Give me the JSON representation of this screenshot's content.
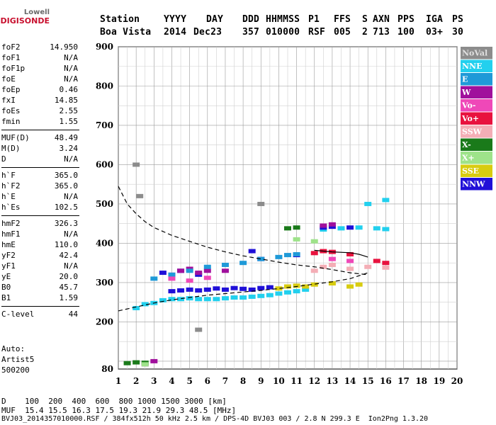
{
  "logo": {
    "line1": "Lowell",
    "line2": "DIGISONDE"
  },
  "header": {
    "cols": [
      "Station",
      "YYYY",
      "DAY",
      "DDD",
      "HHMMSS",
      "P1",
      "FFS",
      "S",
      "AXN",
      "PPS",
      "IGA",
      "PS"
    ],
    "vals": [
      "Boa Vista",
      "2014",
      "Dec23",
      "357",
      "010000",
      "RSF",
      "005",
      "2",
      "713",
      "100",
      "03+",
      "30"
    ]
  },
  "params": [
    {
      "k": "foF2",
      "v": "14.950"
    },
    {
      "k": "foF1",
      "v": "N/A"
    },
    {
      "k": "foF1p",
      "v": "N/A"
    },
    {
      "k": "foE",
      "v": "N/A"
    },
    {
      "k": "foEp",
      "v": "0.46"
    },
    {
      "k": "fxI",
      "v": "14.85"
    },
    {
      "k": "foEs",
      "v": "2.55"
    },
    {
      "k": "fmin",
      "v": "1.55"
    },
    {
      "k": "MUF(D)",
      "v": "48.49"
    },
    {
      "k": "M(D)",
      "v": "3.24"
    },
    {
      "k": "D",
      "v": "N/A"
    },
    {
      "k": "h`F",
      "v": "365.0"
    },
    {
      "k": "h`F2",
      "v": "365.0"
    },
    {
      "k": "h`E",
      "v": "N/A"
    },
    {
      "k": "h`Es",
      "v": "102.5"
    },
    {
      "k": "hmF2",
      "v": "326.3"
    },
    {
      "k": "hmF1",
      "v": "N/A"
    },
    {
      "k": "hmE",
      "v": "110.0"
    },
    {
      "k": "yF2",
      "v": "42.4"
    },
    {
      "k": "yF1",
      "v": "N/A"
    },
    {
      "k": "yE",
      "v": "20.0"
    },
    {
      "k": "B0",
      "v": "45.7"
    },
    {
      "k": "B1",
      "v": "1.59"
    },
    {
      "k": "C-level",
      "v": "44"
    }
  ],
  "auto": {
    "line1": "Auto:",
    "line2": "Artist5",
    "line3": "500200"
  },
  "footer": {
    "line1": "D    100  200  400  600  800 1000 1500 3000 [km]",
    "line2": "MUF  15.4 15.5 16.3 17.5 19.3 21.9 29.3 48.5 [MHz]",
    "line3": "BVJ03_2014357010000.RSF / 384fx512h 50 kHz 2.5 km / DPS-4D BVJ03 003 / 2.8 N 299.3 E  Ion2Png 1.3.20"
  },
  "chart_data": {
    "type": "scatter",
    "title": "",
    "xlabel": "",
    "ylabel": "",
    "xlim": [
      1,
      20
    ],
    "ylim": [
      80,
      900
    ],
    "x_ticks": [
      1,
      2,
      3,
      4,
      5,
      6,
      7,
      8,
      9,
      10,
      11,
      12,
      13,
      14,
      15,
      16,
      17,
      18,
      19,
      20
    ],
    "y_ticks": [
      80,
      200,
      300,
      400,
      500,
      600,
      700,
      800,
      900
    ],
    "grid": true,
    "legend": {
      "placement": "right",
      "entries": [
        {
          "name": "NoVal",
          "color": "#8c8c8c"
        },
        {
          "name": "NNE",
          "color": "#22d0ee"
        },
        {
          "name": "E",
          "color": "#1f9ad8"
        },
        {
          "name": "W",
          "color": "#a0109c"
        },
        {
          "name": "Vo-",
          "color": "#ef48b8"
        },
        {
          "name": "Vo+",
          "color": "#e8123e"
        },
        {
          "name": "SSW",
          "color": "#f4aeb6"
        },
        {
          "name": "X-",
          "color": "#1a7a1a"
        },
        {
          "name": "X+",
          "color": "#9ee38a"
        },
        {
          "name": "SSE",
          "color": "#d8cc10"
        },
        {
          "name": "NNW",
          "color": "#2010d8"
        }
      ]
    },
    "series": [
      {
        "color": "#22d0ee",
        "x": [
          2.0,
          2.5,
          3.0,
          3.5,
          4.0,
          4.5,
          5.0,
          5.5,
          6.0,
          6.5,
          7.0,
          7.5,
          8.0,
          8.5,
          9.0,
          9.5,
          10.0,
          10.5,
          11.0,
          11.5,
          12.5,
          13.5,
          14.5,
          15.5,
          16.0,
          15.0,
          16.0
        ],
        "y": [
          235,
          245,
          248,
          255,
          258,
          258,
          260,
          258,
          258,
          258,
          260,
          262,
          262,
          264,
          266,
          268,
          272,
          275,
          278,
          282,
          435,
          438,
          440,
          438,
          436,
          500,
          510
        ]
      },
      {
        "color": "#2010d8",
        "x": [
          4.0,
          4.5,
          5.0,
          5.5,
          6.0,
          6.5,
          7.0,
          7.5,
          8.0,
          8.5,
          9.0,
          9.5,
          3.5,
          4.5,
          5.5,
          8.5,
          9.0,
          12.5,
          13.0,
          14.0,
          11.0
        ],
        "y": [
          278,
          280,
          282,
          280,
          282,
          285,
          282,
          286,
          284,
          282,
          286,
          288,
          325,
          330,
          320,
          380,
          360,
          440,
          442,
          440,
          370
        ]
      },
      {
        "color": "#a0109c",
        "x": [
          4.0,
          4.5,
          5.0,
          5.5,
          6.0,
          7.0,
          2.5,
          3.0,
          12.5,
          13.0
        ],
        "y": [
          320,
          330,
          335,
          325,
          330,
          330,
          92,
          100,
          445,
          448
        ]
      },
      {
        "color": "#1f9ad8",
        "x": [
          3.0,
          4.0,
          5.0,
          6.0,
          7.0,
          8.0,
          9.0,
          10.0,
          10.5,
          11.0
        ],
        "y": [
          310,
          320,
          330,
          340,
          345,
          350,
          360,
          365,
          370,
          372
        ]
      },
      {
        "color": "#d8cc10",
        "x": [
          10.0,
          10.5,
          11.0,
          11.5,
          12.0,
          13.0,
          14.0,
          14.5
        ],
        "y": [
          285,
          290,
          292,
          290,
          295,
          298,
          290,
          295
        ]
      },
      {
        "color": "#f4aeb6",
        "x": [
          12.0,
          12.5,
          13.0,
          14.0,
          15.0,
          16.0
        ],
        "y": [
          330,
          340,
          345,
          335,
          340,
          338
        ]
      },
      {
        "color": "#e8123e",
        "x": [
          12.0,
          12.5,
          13.0,
          14.0,
          15.5,
          16.0
        ],
        "y": [
          375,
          380,
          378,
          372,
          355,
          350
        ]
      },
      {
        "color": "#ef48b8",
        "x": [
          4.0,
          5.0,
          6.0,
          13.0,
          14.0
        ],
        "y": [
          310,
          305,
          312,
          360,
          355
        ]
      },
      {
        "color": "#1a7a1a",
        "x": [
          1.5,
          2.0,
          2.5,
          11.0,
          10.5
        ],
        "y": [
          95,
          97,
          96,
          440,
          438
        ]
      },
      {
        "color": "#9ee38a",
        "x": [
          2.5,
          11.0,
          12.0
        ],
        "y": [
          92,
          410,
          405
        ]
      },
      {
        "color": "#8c8c8c",
        "x": [
          2.0,
          2.2,
          5.5,
          9.0
        ],
        "y": [
          600,
          520,
          180,
          500
        ]
      }
    ],
    "curves": [
      {
        "style": "dashed",
        "color": "#000000",
        "x": [
          1.0,
          1.5,
          2.0,
          2.5,
          3.0,
          4.0,
          5.0,
          6.0,
          7.0,
          8.0,
          9.0,
          10.0,
          11.0,
          12.0,
          13.0,
          14.0,
          15.0
        ],
        "y": [
          545,
          500,
          475,
          455,
          440,
          420,
          405,
          390,
          378,
          368,
          360,
          352,
          345,
          340,
          333,
          325,
          320
        ]
      },
      {
        "style": "dashed",
        "color": "#000000",
        "x": [
          1.0,
          2.0,
          3.0,
          4.0,
          5.0,
          6.0,
          7.0,
          8.0,
          9.0,
          10.0,
          11.0,
          12.0,
          13.0,
          14.0,
          15.0
        ],
        "y": [
          228,
          238,
          248,
          256,
          262,
          268,
          272,
          276,
          280,
          285,
          290,
          296,
          302,
          310,
          325
        ]
      },
      {
        "style": "solid",
        "color": "#000000",
        "x": [
          12.0,
          13.0,
          14.0,
          14.5,
          15.0
        ],
        "y": [
          382,
          378,
          376,
          372,
          365
        ]
      }
    ]
  }
}
